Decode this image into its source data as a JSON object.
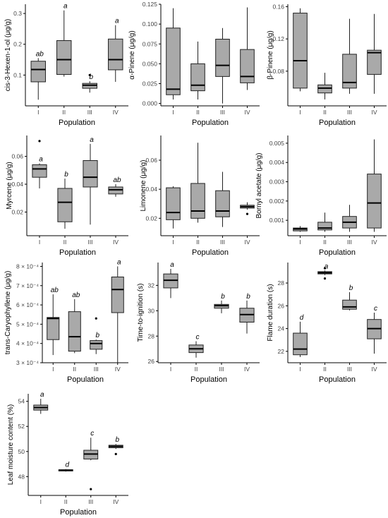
{
  "chart_data": [
    {
      "type": "box",
      "ylabel": "cis-3-Hexen-1-ol (μg/g)",
      "xlabel": "Population",
      "categories": [
        "I",
        "II",
        "III",
        "IV"
      ],
      "ylim": [
        0,
        0.33
      ],
      "yticks": [
        0.1,
        0.2,
        0.3
      ],
      "ytick_labels": [
        "0.1",
        "0.2",
        "0.3"
      ],
      "boxes": [
        {
          "min": 0.02,
          "q1": 0.078,
          "median": 0.118,
          "q3": 0.145,
          "max": 0.155,
          "outliers": [],
          "letter": "ab"
        },
        {
          "min": 0.095,
          "q1": 0.102,
          "median": 0.15,
          "q3": 0.212,
          "max": 0.31,
          "outliers": [],
          "letter": "a"
        },
        {
          "min": 0.043,
          "q1": 0.057,
          "median": 0.067,
          "q3": 0.073,
          "max": 0.08,
          "outliers": [
            0.1
          ],
          "letter": "b"
        },
        {
          "min": 0.078,
          "q1": 0.117,
          "median": 0.15,
          "q3": 0.217,
          "max": 0.262,
          "outliers": [],
          "letter": "a"
        }
      ]
    },
    {
      "type": "box",
      "ylabel": "α-Pinene (μg/g)",
      "xlabel": "Population",
      "categories": [
        "I",
        "II",
        "III",
        "IV"
      ],
      "ylim": [
        -0.003,
        0.125
      ],
      "yticks": [
        0,
        0.025,
        0.05,
        0.075,
        0.1,
        0.125
      ],
      "ytick_labels": [
        "0.000",
        "0.025",
        "0.050",
        "0.075",
        "0.100",
        "0.125"
      ],
      "boxes": [
        {
          "min": 0.005,
          "q1": 0.011,
          "median": 0.018,
          "q3": 0.095,
          "max": 0.12,
          "outliers": [],
          "letter": ""
        },
        {
          "min": 0.005,
          "q1": 0.016,
          "median": 0.023,
          "q3": 0.05,
          "max": 0.078,
          "outliers": [],
          "letter": ""
        },
        {
          "min": 0,
          "q1": 0.034,
          "median": 0.048,
          "q3": 0.081,
          "max": 0.095,
          "outliers": [],
          "letter": ""
        },
        {
          "min": 0.017,
          "q1": 0.026,
          "median": 0.034,
          "q3": 0.068,
          "max": 0.121,
          "outliers": [],
          "letter": ""
        }
      ]
    },
    {
      "type": "box",
      "ylabel": "β-Pinene (μg/g)",
      "xlabel": "Population",
      "categories": [
        "I",
        "II",
        "III",
        "IV"
      ],
      "ylim": [
        0.037,
        0.163
      ],
      "yticks": [
        0.08,
        0.12,
        0.16
      ],
      "ytick_labels": [
        "0.08",
        "0.12",
        "0.16"
      ],
      "boxes": [
        {
          "min": 0.055,
          "q1": 0.059,
          "median": 0.093,
          "q3": 0.152,
          "max": 0.158,
          "outliers": [],
          "letter": ""
        },
        {
          "min": 0.045,
          "q1": 0.053,
          "median": 0.059,
          "q3": 0.063,
          "max": 0.078,
          "outliers": [],
          "letter": ""
        },
        {
          "min": 0.052,
          "q1": 0.059,
          "median": 0.066,
          "q3": 0.101,
          "max": 0.145,
          "outliers": [],
          "letter": ""
        },
        {
          "min": 0.052,
          "q1": 0.076,
          "median": 0.103,
          "q3": 0.106,
          "max": 0.151,
          "outliers": [],
          "letter": ""
        }
      ]
    },
    {
      "type": "box",
      "ylabel": "Myrcene (μg/g)",
      "xlabel": "Population",
      "categories": [
        "I",
        "II",
        "III",
        "IV"
      ],
      "ylim": [
        0.003,
        0.075
      ],
      "yticks": [
        0.02,
        0.04,
        0.06
      ],
      "ytick_labels": [
        "0.02",
        "0.04",
        "0.06"
      ],
      "boxes": [
        {
          "min": 0.037,
          "q1": 0.045,
          "median": 0.051,
          "q3": 0.054,
          "max": 0.055,
          "outliers": [
            0.071
          ],
          "letter": "a"
        },
        {
          "min": 0.008,
          "q1": 0.013,
          "median": 0.027,
          "q3": 0.037,
          "max": 0.044,
          "outliers": [],
          "letter": "b"
        },
        {
          "min": 0.011,
          "q1": 0.038,
          "median": 0.045,
          "q3": 0.057,
          "max": 0.069,
          "outliers": [],
          "letter": "a"
        },
        {
          "min": 0.031,
          "q1": 0.033,
          "median": 0.036,
          "q3": 0.038,
          "max": 0.04,
          "outliers": [],
          "letter": "ab"
        }
      ]
    },
    {
      "type": "box",
      "ylabel": "Limonene (μg/g)",
      "xlabel": "Population",
      "categories": [
        "I",
        "II",
        "III",
        "IV"
      ],
      "ylim": [
        0.008,
        0.077
      ],
      "yticks": [
        0.02,
        0.04,
        0.06
      ],
      "ytick_labels": [
        "0.02",
        "0.04",
        "0.06"
      ],
      "boxes": [
        {
          "min": 0.013,
          "q1": 0.019,
          "median": 0.024,
          "q3": 0.041,
          "max": 0.042,
          "outliers": [],
          "letter": ""
        },
        {
          "min": 0.017,
          "q1": 0.02,
          "median": 0.025,
          "q3": 0.044,
          "max": 0.072,
          "outliers": [],
          "letter": ""
        },
        {
          "min": 0.014,
          "q1": 0.021,
          "median": 0.025,
          "q3": 0.039,
          "max": 0.052,
          "outliers": [],
          "letter": ""
        },
        {
          "min": 0.026,
          "q1": 0.027,
          "median": 0.028,
          "q3": 0.029,
          "max": 0.031,
          "outliers": [
            0.023
          ],
          "letter": ""
        }
      ]
    },
    {
      "type": "box",
      "ylabel": "Bornyl acetate (μg/g)",
      "xlabel": "Population",
      "categories": [
        "I",
        "II",
        "III",
        "IV"
      ],
      "ylim": [
        0.0002,
        0.0054
      ],
      "yticks": [
        0.001,
        0.002,
        0.003,
        0.004,
        0.005
      ],
      "ytick_labels": [
        "0.001",
        "0.002",
        "0.003",
        "0.004",
        "0.005"
      ],
      "boxes": [
        {
          "min": 0.0004,
          "q1": 0.00045,
          "median": 0.00055,
          "q3": 0.0006,
          "max": 0.0007,
          "outliers": [],
          "letter": ""
        },
        {
          "min": 0.0004,
          "q1": 0.0005,
          "median": 0.0006,
          "q3": 0.0009,
          "max": 0.0014,
          "outliers": [],
          "letter": ""
        },
        {
          "min": 0.0004,
          "q1": 0.0006,
          "median": 0.0009,
          "q3": 0.0012,
          "max": 0.0018,
          "outliers": [],
          "letter": ""
        },
        {
          "min": 0.0004,
          "q1": 0.0006,
          "median": 0.0019,
          "q3": 0.0034,
          "max": 0.0052,
          "outliers": [],
          "letter": ""
        }
      ]
    },
    {
      "type": "box",
      "ylabel": "trans-Caryophyllene (μg/g)",
      "xlabel": "Population",
      "categories": [
        "I",
        "II",
        "III",
        "IV"
      ],
      "ylim": [
        0.0003,
        0.00082
      ],
      "yticks": [
        0.0003,
        0.0004,
        0.0005,
        0.0006,
        0.0007,
        0.0008
      ],
      "ytick_labels": [
        "3 × 10⁻⁴",
        "4 × 10⁻⁴",
        "5 × 10⁻⁴",
        "6 × 10⁻⁴",
        "7 × 10⁻⁴",
        "8 × 10⁻⁴"
      ],
      "boxes": [
        {
          "min": 0.00034,
          "q1": 0.00042,
          "median": 0.00053,
          "q3": 0.000535,
          "max": 0.000655,
          "outliers": [],
          "letter": "ab"
        },
        {
          "min": 0.00035,
          "q1": 0.00036,
          "median": 0.000435,
          "q3": 0.000565,
          "max": 0.00063,
          "outliers": [],
          "letter": "ab"
        },
        {
          "min": 0.000345,
          "q1": 0.00037,
          "median": 0.0004,
          "q3": 0.000415,
          "max": 0.00042,
          "outliers": [
            0.00053
          ],
          "letter": "b"
        },
        {
          "min": 0.0003,
          "q1": 0.00056,
          "median": 0.00068,
          "q3": 0.000745,
          "max": 0.0008,
          "outliers": [],
          "letter": "a"
        }
      ]
    },
    {
      "type": "box",
      "ylabel": "Time-to-ignition (s)",
      "xlabel": "Population",
      "categories": [
        "I",
        "II",
        "III",
        "IV"
      ],
      "ylim": [
        25.9,
        33.8
      ],
      "yticks": [
        26,
        28,
        30,
        32
      ],
      "ytick_labels": [
        "26",
        "28",
        "30",
        "32"
      ],
      "boxes": [
        {
          "min": 31,
          "q1": 31.8,
          "median": 32.4,
          "q3": 32.9,
          "max": 33.3,
          "outliers": [],
          "letter": "a"
        },
        {
          "min": 26.3,
          "q1": 26.7,
          "median": 27,
          "q3": 27.3,
          "max": 27.6,
          "outliers": [],
          "letter": "c"
        },
        {
          "min": 29.8,
          "q1": 30.2,
          "median": 30.4,
          "q3": 30.5,
          "max": 30.8,
          "outliers": [],
          "letter": "b"
        },
        {
          "min": 28.2,
          "q1": 29.1,
          "median": 29.7,
          "q3": 30.2,
          "max": 30.8,
          "outliers": [],
          "letter": "b"
        }
      ]
    },
    {
      "type": "box",
      "ylabel": "Flame duration (s)",
      "xlabel": "Population",
      "categories": [
        "I",
        "II",
        "III",
        "IV"
      ],
      "ylim": [
        21,
        29.8
      ],
      "yticks": [
        22,
        24,
        26,
        28
      ],
      "ytick_labels": [
        "22",
        "24",
        "26",
        "28"
      ],
      "boxes": [
        {
          "min": 21.5,
          "q1": 21.7,
          "median": 22.2,
          "q3": 23.6,
          "max": 24.6,
          "outliers": [],
          "letter": "d"
        },
        {
          "min": 28.7,
          "q1": 28.8,
          "median": 28.9,
          "q3": 29,
          "max": 29.1,
          "outliers": [
            29.3,
            28.4
          ],
          "letter": "a"
        },
        {
          "min": 25.6,
          "q1": 25.7,
          "median": 25.9,
          "q3": 26.5,
          "max": 27.2,
          "outliers": [],
          "letter": "b"
        },
        {
          "min": 21.8,
          "q1": 23.1,
          "median": 24,
          "q3": 24.8,
          "max": 25.4,
          "outliers": [],
          "letter": "c"
        }
      ]
    },
    {
      "type": "box",
      "ylabel": "Leaf moisture content (%)",
      "xlabel": "Population",
      "categories": [
        "I",
        "II",
        "III",
        "IV"
      ],
      "ylim": [
        46.5,
        54.6
      ],
      "yticks": [
        48,
        50,
        52,
        54
      ],
      "ytick_labels": [
        "48",
        "50",
        "52",
        "54"
      ],
      "boxes": [
        {
          "min": 53,
          "q1": 53.3,
          "median": 53.5,
          "q3": 53.7,
          "max": 54.2,
          "outliers": [],
          "letter": "a"
        },
        {
          "min": 48.4,
          "q1": 48.45,
          "median": 48.5,
          "q3": 48.55,
          "max": 48.6,
          "outliers": [],
          "letter": "d"
        },
        {
          "min": 49.3,
          "q1": 49.4,
          "median": 49.8,
          "q3": 50.1,
          "max": 51.1,
          "outliers": [
            47
          ],
          "letter": "c"
        },
        {
          "min": 50.2,
          "q1": 50.3,
          "median": 50.4,
          "q3": 50.5,
          "max": 50.6,
          "outliers": [
            49.8
          ],
          "letter": "b"
        }
      ]
    }
  ],
  "colors": {
    "box_fill": "#a9a9a9",
    "line": "#222222",
    "axis": "#000000",
    "tick_text": "#444444"
  }
}
